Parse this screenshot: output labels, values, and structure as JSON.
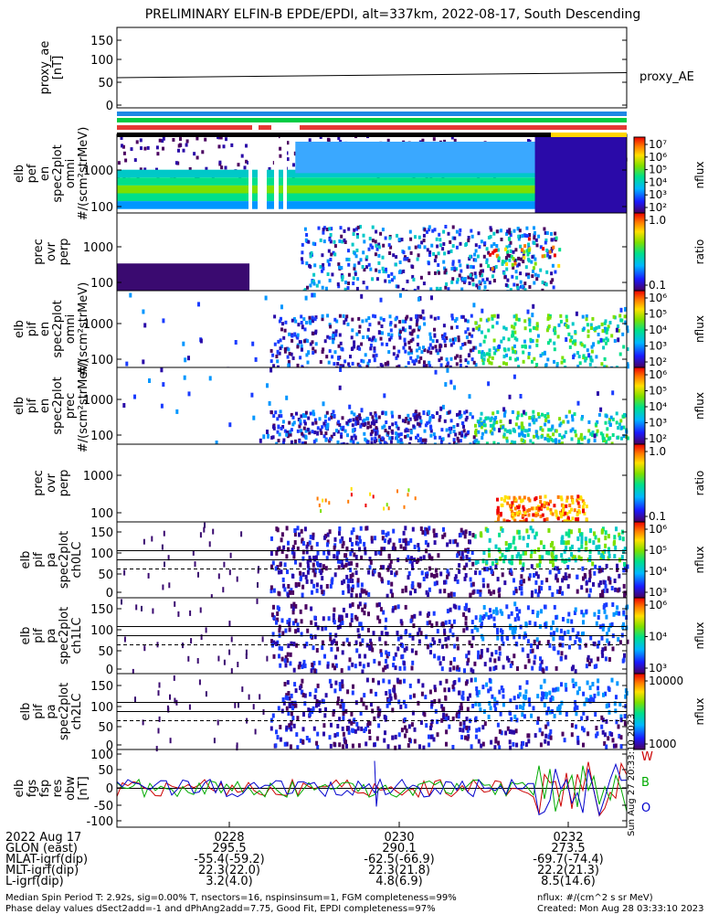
{
  "title": "PRELIMINARY ELFIN-B EPDE/EPDI, alt=337km, 2022-08-17, South Descending",
  "panels": [
    {
      "ylabel": [
        "proxy_ae",
        "[nT]"
      ],
      "yticks": [
        "150",
        "100",
        "50",
        "0"
      ],
      "right_label": "proxy_AE"
    },
    {
      "ylabel": [
        "elb",
        "pef",
        "en",
        "spec2plot",
        "omni",
        "#/(scm²strMeV)"
      ],
      "yticks": [
        "1000",
        "100"
      ],
      "cbar_ticks": [
        "10⁷",
        "10⁶",
        "10⁵",
        "10⁴",
        "10³",
        "10²"
      ],
      "cbar_label": "nflux"
    },
    {
      "ylabel": [
        "prec",
        "ovr",
        "perp"
      ],
      "yticks": [
        "1000",
        "100"
      ],
      "cbar_ticks": [
        "1.0",
        "0.1"
      ],
      "cbar_label": "ratio"
    },
    {
      "ylabel": [
        "elb",
        "pif",
        "en",
        "spec2plot",
        "omni",
        "#/(scm²strMeV)"
      ],
      "yticks": [
        "1000",
        "100"
      ],
      "cbar_ticks": [
        "10⁶",
        "10⁵",
        "10⁴",
        "10³",
        "10²"
      ],
      "cbar_label": "nflux"
    },
    {
      "ylabel": [
        "elb",
        "pif",
        "en",
        "spec2plot",
        "prec",
        "#/(scm²strMeV)"
      ],
      "yticks": [
        "1000",
        "100"
      ],
      "cbar_ticks": [
        "10⁶",
        "10⁵",
        "10⁴",
        "10³",
        "10²"
      ],
      "cbar_label": "nflux"
    },
    {
      "ylabel": [
        "prec",
        "ovr",
        "perp"
      ],
      "yticks": [
        "1000",
        "100"
      ],
      "cbar_ticks": [
        "1.0",
        "0.1"
      ],
      "cbar_label": "ratio"
    },
    {
      "ylabel": [
        "elb",
        "pif",
        "pa",
        "spec2plot",
        "ch0LC"
      ],
      "yticks": [
        "150",
        "100",
        "50",
        "0"
      ],
      "cbar_ticks": [
        "10⁶",
        "10⁵",
        "10⁴",
        "10³"
      ],
      "cbar_label": "nflux"
    },
    {
      "ylabel": [
        "elb",
        "pif",
        "pa",
        "spec2plot",
        "ch1LC"
      ],
      "yticks": [
        "150",
        "100",
        "50",
        "0"
      ],
      "cbar_ticks": [
        "10⁶",
        "10⁴",
        "10³"
      ],
      "cbar_label": "nflux"
    },
    {
      "ylabel": [
        "elb",
        "pif",
        "pa",
        "spec2plot",
        "ch2LC"
      ],
      "yticks": [
        "150",
        "100",
        "50",
        "0"
      ],
      "cbar_ticks": [
        "10000",
        "1000"
      ],
      "cbar_label": "nflux"
    },
    {
      "ylabel": [
        "elb",
        "fgs",
        "fsp",
        "res",
        "obw",
        "[nT]"
      ],
      "yticks": [
        "100",
        "50",
        "0",
        "-50",
        "-100"
      ],
      "legend": [
        "W",
        "B",
        "O"
      ]
    }
  ],
  "time_axis": {
    "date": "2022 Aug 17",
    "rows": [
      {
        "label": "GLON (east)",
        "values": [
          "295.5",
          "290.1",
          "273.5"
        ]
      },
      {
        "label": "MLAT-igrf(dip)",
        "values": [
          "-55.4(-59.2)",
          "-62.5(-66.9)",
          "-69.7(-74.4)"
        ]
      },
      {
        "label": "MLT-igrf(dip)",
        "values": [
          "22.3(22.0)",
          "22.3(21.8)",
          "22.2(21.3)"
        ]
      },
      {
        "label": "L-igrf(dip)",
        "values": [
          "3.2(4.0)",
          "4.8(6.9)",
          "8.5(14.6)"
        ]
      }
    ]
  },
  "footer": {
    "line1_left": "Median Spin Period T: 2.92s, sig=0.00% T, nsectors=16, nspinsinsum=1, FGM completeness=99%",
    "line2_left": "Phase delay values dSect2add=-1 and dPhAng2add=7.75, Good Fit, EPDI completeness=97%",
    "line1_right": "nflux: #/(cm^2 s sr MeV)",
    "line2_right": "Created: Mon Aug 28 03:33:10 2023",
    "side_stamp": "Sun Aug 27 20:33:10 2023"
  },
  "chart_data": {
    "type": "heatmap",
    "title": "PRELIMINARY ELFIN-B EPDE/EPDI, alt=337km, 2022-08-17, South Descending",
    "x_ticks": [
      "0228",
      "0230",
      "0232"
    ],
    "proxy_ae": {
      "ylim": [
        -10,
        150
      ],
      "x": [
        0,
        1
      ],
      "values": [
        50,
        60
      ]
    },
    "fgs_residuals": {
      "ylim": [
        -110,
        110
      ],
      "series": [
        {
          "name": "W",
          "color": "#cc0000"
        },
        {
          "name": "B",
          "color": "#00aa00"
        },
        {
          "name": "O",
          "color": "#0000cc"
        }
      ]
    }
  }
}
